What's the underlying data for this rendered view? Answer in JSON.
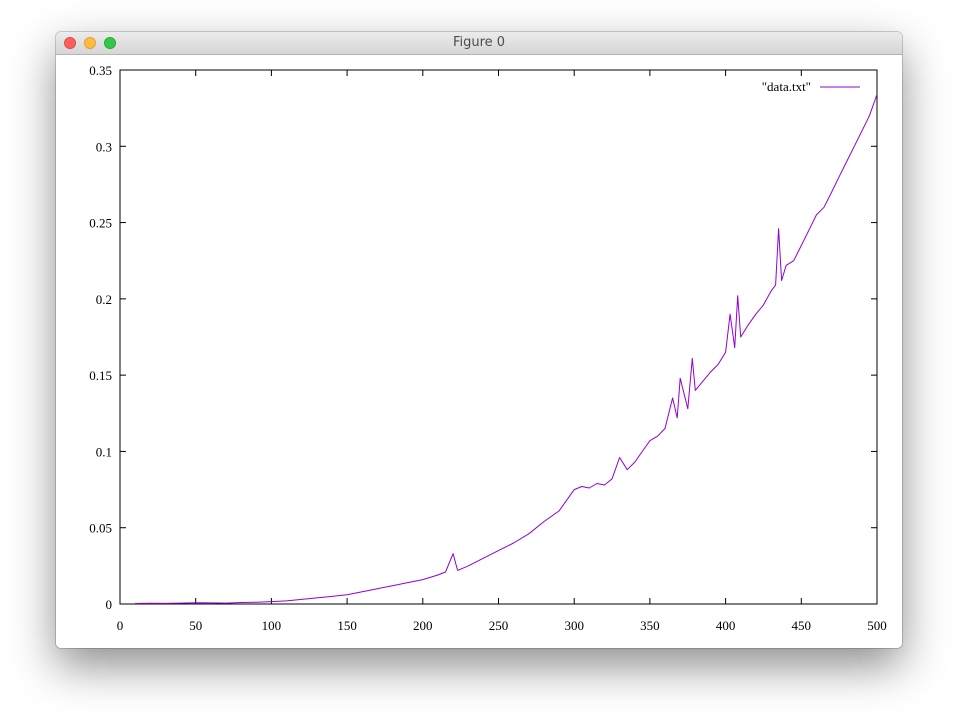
{
  "window": {
    "title": "Figure 0"
  },
  "colors": {
    "series": "#9400d3",
    "axis": "#000000",
    "titlebar": "#e0e0e0"
  },
  "chart_data": {
    "type": "line",
    "title": "",
    "xlabel": "",
    "ylabel": "",
    "xlim": [
      0,
      500
    ],
    "ylim": [
      0,
      0.35
    ],
    "xticks": [
      0,
      50,
      100,
      150,
      200,
      250,
      300,
      350,
      400,
      450,
      500
    ],
    "yticks": [
      0,
      0.05,
      0.1,
      0.15,
      0.2,
      0.25,
      0.3,
      0.35
    ],
    "xtick_labels": [
      "0",
      "50",
      "100",
      "150",
      "200",
      "250",
      "300",
      "350",
      "400",
      "450",
      "500"
    ],
    "ytick_labels": [
      "0",
      "0.05",
      "0.1",
      "0.15",
      "0.2",
      "0.25",
      "0.3",
      "0.35"
    ],
    "grid": false,
    "legend_position": "top-right",
    "series": [
      {
        "name": "\"data.txt\"",
        "color": "#9400d3",
        "x": [
          10,
          20,
          30,
          40,
          50,
          60,
          70,
          80,
          90,
          100,
          110,
          120,
          130,
          140,
          150,
          160,
          170,
          180,
          190,
          200,
          210,
          215,
          220,
          223,
          230,
          240,
          250,
          260,
          270,
          280,
          290,
          300,
          305,
          310,
          315,
          320,
          325,
          330,
          335,
          340,
          345,
          350,
          355,
          360,
          365,
          368,
          370,
          375,
          378,
          380,
          385,
          390,
          395,
          400,
          403,
          406,
          408,
          410,
          415,
          420,
          425,
          430,
          433,
          435,
          437,
          440,
          445,
          450,
          455,
          460,
          465,
          470,
          475,
          480,
          485,
          490,
          495,
          500
        ],
        "y": [
          0.0003,
          0.0005,
          0.0004,
          0.0006,
          0.0008,
          0.0007,
          0.0006,
          0.001,
          0.0012,
          0.0016,
          0.002,
          0.003,
          0.004,
          0.005,
          0.006,
          0.008,
          0.01,
          0.012,
          0.014,
          0.016,
          0.019,
          0.021,
          0.033,
          0.022,
          0.025,
          0.03,
          0.035,
          0.04,
          0.046,
          0.054,
          0.061,
          0.075,
          0.077,
          0.076,
          0.079,
          0.078,
          0.082,
          0.096,
          0.088,
          0.093,
          0.1,
          0.107,
          0.11,
          0.115,
          0.135,
          0.122,
          0.148,
          0.128,
          0.161,
          0.14,
          0.146,
          0.152,
          0.157,
          0.165,
          0.19,
          0.168,
          0.202,
          0.175,
          0.183,
          0.19,
          0.196,
          0.205,
          0.209,
          0.246,
          0.212,
          0.222,
          0.225,
          0.235,
          0.245,
          0.255,
          0.26,
          0.27,
          0.28,
          0.29,
          0.3,
          0.31,
          0.32,
          0.334
        ]
      }
    ]
  }
}
